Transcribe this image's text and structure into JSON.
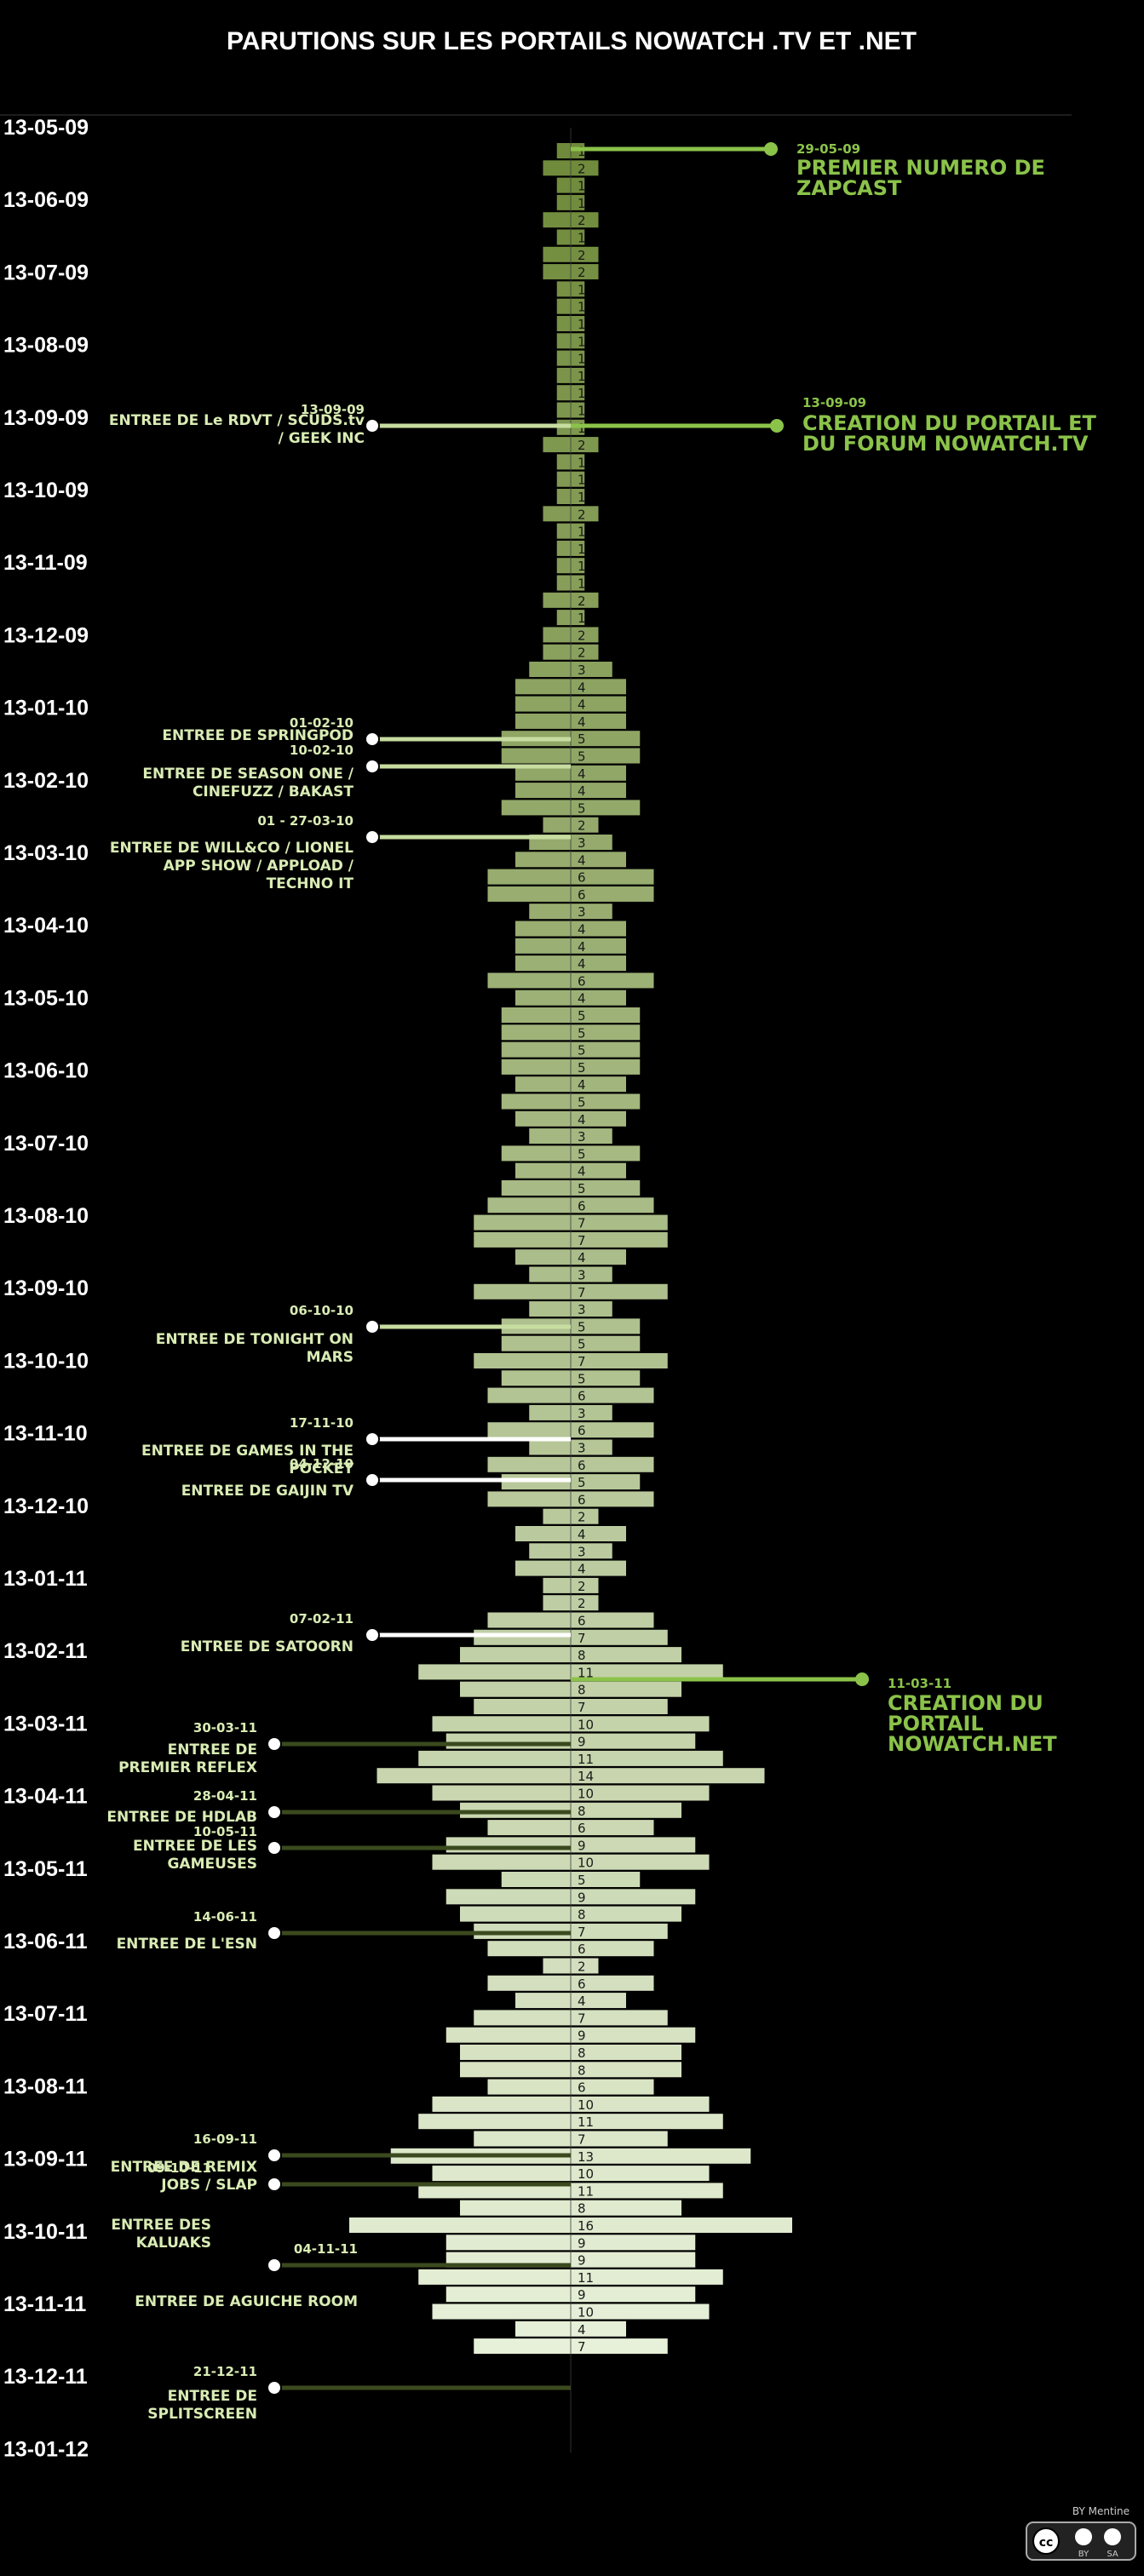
{
  "chart_data": {
    "type": "bar",
    "title": "PARUTIONS SUR LES PORTAILS NOWATCH .TV ET .NET",
    "orientation": "horizontal-centered",
    "date_labels": [
      "13-05-09",
      "13-06-09",
      "13-07-09",
      "13-08-09",
      "13-09-09",
      "13-10-09",
      "13-11-09",
      "13-12-09",
      "13-01-10",
      "13-02-10",
      "13-03-10",
      "13-04-10",
      "13-05-10",
      "13-06-10",
      "13-07-10",
      "13-08-10",
      "13-09-10",
      "13-10-10",
      "13-11-10",
      "13-12-10",
      "13-01-11",
      "13-02-11",
      "13-03-11",
      "13-04-11",
      "13-05-11",
      "13-06-11",
      "13-07-11",
      "13-08-11",
      "13-09-11",
      "13-10-11",
      "13-11-11",
      "13-12-11",
      "13-01-12"
    ],
    "values": [
      1,
      2,
      1,
      1,
      2,
      1,
      2,
      2,
      1,
      1,
      1,
      1,
      1,
      1,
      1,
      1,
      1,
      2,
      1,
      1,
      1,
      2,
      1,
      1,
      1,
      1,
      2,
      1,
      2,
      2,
      3,
      4,
      4,
      4,
      5,
      5,
      4,
      4,
      5,
      2,
      3,
      4,
      6,
      6,
      3,
      4,
      4,
      4,
      6,
      4,
      5,
      5,
      5,
      5,
      4,
      5,
      4,
      3,
      5,
      4,
      5,
      6,
      7,
      7,
      4,
      3,
      7,
      3,
      5,
      5,
      7,
      5,
      6,
      3,
      6,
      3,
      6,
      5,
      6,
      2,
      4,
      3,
      4,
      2,
      2,
      6,
      7,
      8,
      11,
      8,
      7,
      10,
      9,
      11,
      14,
      10,
      8,
      6,
      9,
      10,
      5,
      9,
      8,
      7,
      6,
      2,
      6,
      4,
      7,
      9,
      8,
      8,
      6,
      10,
      11,
      7,
      13,
      10,
      11,
      8,
      16,
      9,
      9,
      11,
      9,
      10,
      4,
      7
    ],
    "annotations_left": [
      {
        "date": "13-09-09",
        "lines": [
          "ENTREE DE Le RDVT / SCUDS.tv",
          "/ GEEK INC"
        ]
      },
      {
        "date": "01-02-10",
        "lines": [
          "ENTREE DE SPRINGPOD"
        ]
      },
      {
        "date": "10-02-10",
        "lines": [
          "ENTREE DE SEASON ONE /",
          "CINEFUZZ / BAKAST"
        ]
      },
      {
        "date": "01 - 27-03-10",
        "lines": [
          "ENTREE DE  WILL&CO / LIONEL",
          "APP SHOW / APPLOAD /",
          "TECHNO IT"
        ]
      },
      {
        "date": "06-10-10",
        "lines": [
          "ENTREE DE TONIGHT ON",
          "MARS"
        ]
      },
      {
        "date": "17-11-10",
        "lines": [
          "ENTREE DE GAMES IN THE",
          "POCKET"
        ]
      },
      {
        "date": "04-12-10",
        "lines": [
          "ENTREE DE GAIJIN TV"
        ]
      },
      {
        "date": "07-02-11",
        "lines": [
          "ENTREE DE SATOORN"
        ]
      },
      {
        "date": "30-03-11",
        "lines": [
          "ENTREE DE",
          "PREMIER REFLEX"
        ]
      },
      {
        "date": "28-04-11",
        "lines": [
          "ENTREE DE HDLAB"
        ]
      },
      {
        "date": "10-05-11",
        "lines": [
          "ENTREE DE LES",
          "GAMEUSES"
        ]
      },
      {
        "date": "14-06-11",
        "lines": [
          "ENTREE DE L'ESN"
        ]
      },
      {
        "date": "16-09-11",
        "lines": [
          "ENTREE DE REMIX",
          "JOBS / SLAP"
        ]
      },
      {
        "date": "09-10-11",
        "lines": [
          "ENTREE DES",
          "KALUAKS"
        ]
      },
      {
        "date": "04-11-11",
        "lines": [
          "ENTREE DE AGUICHE ROOM"
        ]
      },
      {
        "date": "21-12-11",
        "lines": [
          "ENTREE DE",
          "SPLITSCREEN"
        ]
      }
    ],
    "annotations_right": [
      {
        "date": "29-05-09",
        "lines": [
          "PREMIER NUMERO DE",
          "ZAPCAST"
        ]
      },
      {
        "date": "13-09-09",
        "lines": [
          "CREATION DU PORTAIL ET",
          "DU FORUM NOWATCH.TV"
        ]
      },
      {
        "date": "11-03-11",
        "lines": [
          "CREATION DU",
          "PORTAIL",
          "NOWATCH.NET"
        ]
      }
    ]
  },
  "footer": {
    "credit": "BY Mentine",
    "license": "cc",
    "license_items": [
      "BY",
      "SA"
    ]
  },
  "colors": {
    "background": "#000000",
    "bar_dark": "#6f8a3a",
    "bar_light": "#e7f0d8",
    "accent": "#8bc34a",
    "annotation_text": "#d9ecb4"
  }
}
